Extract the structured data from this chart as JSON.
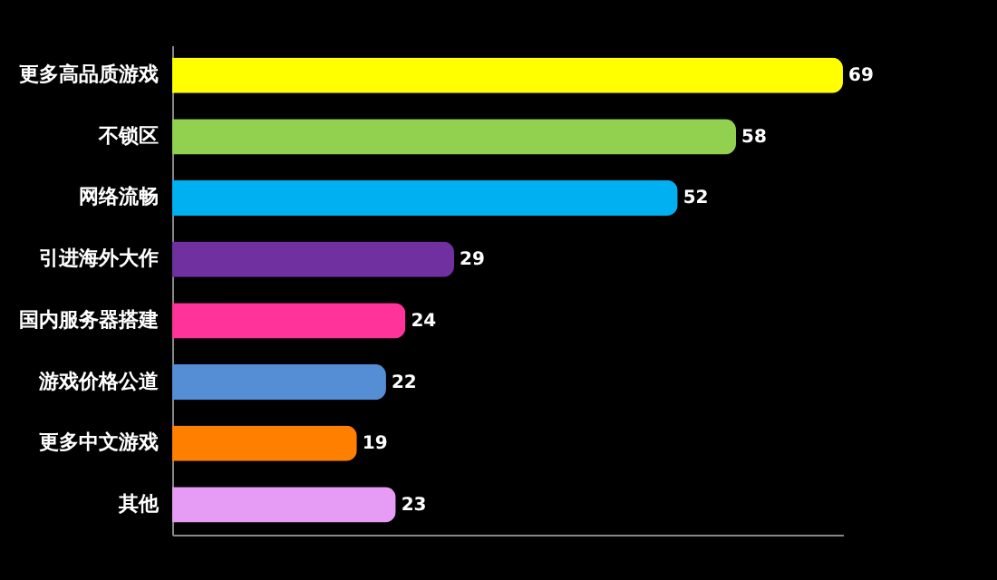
{
  "chart_data": {
    "type": "bar",
    "orientation": "horizontal",
    "data_labels": true,
    "tick_labels": "y",
    "categories": [
      "更多高品质游戏",
      "不锁区",
      "网络流畅",
      "引进海外大作",
      "国内服务器搭建",
      "游戏价格公道",
      "更多中文游戏",
      "其他"
    ],
    "values": [
      69,
      58,
      52,
      29,
      24,
      22,
      19,
      23
    ],
    "colors": [
      "#ffff00",
      "#92d050",
      "#00b0f0",
      "#7030a0",
      "#ff3399",
      "#558ed5",
      "#ff7f00",
      "#e69cf5"
    ]
  }
}
